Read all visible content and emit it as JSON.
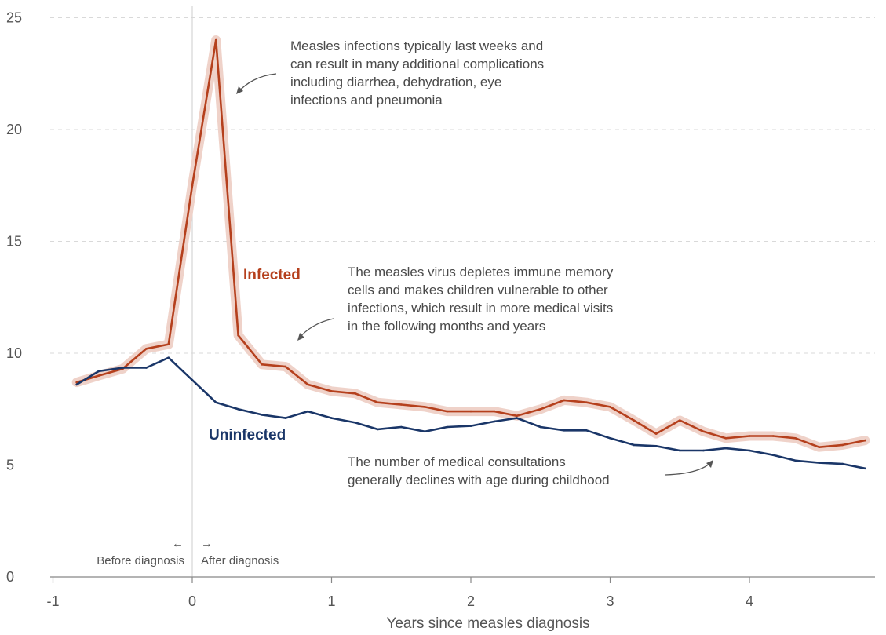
{
  "chart_data": {
    "type": "line",
    "xlabel": "Years since measles diagnosis",
    "ylabel": "",
    "xlim": [
      -1,
      4.92
    ],
    "ylim": [
      0,
      25
    ],
    "x_ticks": [
      "-1",
      "0",
      "1",
      "2",
      "3",
      "4"
    ],
    "y_ticks": [
      "0",
      "5",
      "10",
      "15",
      "20",
      "25"
    ],
    "grid": "horizontal dashed",
    "x": [
      -0.83,
      -0.67,
      -0.5,
      -0.33,
      -0.17,
      0.0,
      0.17,
      0.33,
      0.5,
      0.67,
      0.83,
      1.0,
      1.17,
      1.33,
      1.5,
      1.67,
      1.83,
      2.0,
      2.17,
      2.33,
      2.5,
      2.67,
      2.83,
      3.0,
      3.17,
      3.33,
      3.5,
      3.67,
      3.83,
      4.0,
      4.17,
      4.33,
      4.5,
      4.67,
      4.83
    ],
    "series": [
      {
        "name": "Infected",
        "color": "#b5401d",
        "band_color": "#efd2c9",
        "values": [
          8.7,
          9.0,
          9.3,
          10.2,
          10.4,
          17.5,
          24.0,
          10.8,
          9.5,
          9.4,
          8.6,
          8.3,
          8.2,
          7.8,
          7.7,
          7.6,
          7.4,
          7.4,
          7.4,
          7.2,
          7.5,
          7.9,
          7.8,
          7.6,
          7.0,
          6.4,
          7.0,
          6.5,
          6.2,
          6.3,
          6.3,
          6.2,
          5.8,
          5.9,
          6.1
        ]
      },
      {
        "name": "Uninfected",
        "color": "#1a3668",
        "values": [
          8.6,
          9.2,
          9.35,
          9.35,
          9.8,
          8.8,
          7.8,
          7.5,
          7.25,
          7.1,
          7.4,
          7.1,
          6.9,
          6.6,
          6.7,
          6.5,
          6.7,
          6.75,
          6.95,
          7.1,
          6.7,
          6.55,
          6.55,
          6.2,
          5.9,
          5.85,
          5.65,
          5.65,
          5.75,
          5.65,
          5.45,
          5.2,
          5.1,
          5.05,
          4.85
        ]
      }
    ],
    "series_labels": {
      "infected": "Infected",
      "uninfected": "Uninfected"
    },
    "annotations": {
      "peak": [
        "Measles infections typically last weeks and",
        "can result in many additional complications",
        "including diarrhea, dehydration, eye",
        "infections and pneumonia"
      ],
      "depletion": [
        "The measles virus depletes immune memory",
        "cells and makes children vulnerable to other",
        "infections, which result in more medical visits",
        "in the following months and years"
      ],
      "decline": [
        "The number of medical consultations",
        "generally declines with age during childhood"
      ]
    },
    "diagnosis_markers": {
      "before": "Before diagnosis",
      "after": "After diagnosis",
      "left_arrow": "←",
      "right_arrow": "→"
    }
  }
}
